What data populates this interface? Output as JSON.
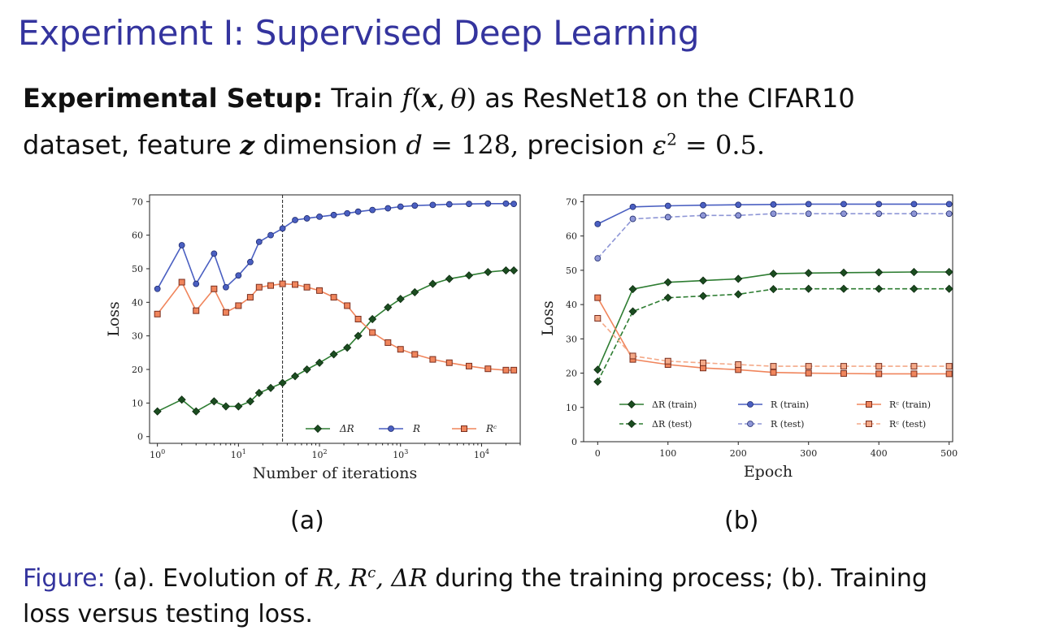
{
  "slide": {
    "title": "Experiment I: Supervised Deep Learning",
    "setup_label": "Experimental Setup:",
    "setup_train": "Train",
    "setup_f": "f",
    "setup_x": "x",
    "setup_theta": "θ",
    "setup_as": "as ResNet18 on the CIFAR10",
    "setup_line2a": "dataset, feature",
    "setup_z": "z",
    "setup_dim": "dimension",
    "setup_d": "d",
    "setup_d_val": "= 128,",
    "setup_precision": "precision",
    "setup_eps": "ε",
    "setup_eps_val": "= 0.5."
  },
  "subcaptions": {
    "a": "(a)",
    "b": "(b)"
  },
  "caption": {
    "label": "Figure:",
    "text_a": "(a). Evolution of",
    "text_math": "R, R",
    "text_mid": "during the training process; (b). Training",
    "text_line2": "loss versus testing loss."
  },
  "colors": {
    "delta_r": "#2e7d32",
    "delta_r_marker": "#1b4d20",
    "r": "#4a5fc1",
    "r_test": "#8e96d6",
    "rc": "#f0855c",
    "rc_test": "#f4a988",
    "rc_marker": "#7a2f1f"
  },
  "chart_data": [
    {
      "type": "line",
      "xlabel": "Number of iterations",
      "ylabel": "Loss",
      "xscale": "log",
      "xlim": [
        0.8,
        30000
      ],
      "ylim": [
        -2,
        72
      ],
      "xticks": [
        "10^0",
        "10^1",
        "10^2",
        "10^3",
        "10^4"
      ],
      "yticks": [
        0,
        10,
        20,
        30,
        40,
        50,
        60,
        70
      ],
      "vline_x": 35,
      "legend_position": "bottom-right",
      "series": [
        {
          "name": "ΔR",
          "key": "delta",
          "x": [
            1,
            2,
            3,
            5,
            7,
            10,
            14,
            18,
            25,
            35,
            50,
            70,
            100,
            150,
            220,
            300,
            450,
            700,
            1000,
            1500,
            2500,
            4000,
            7000,
            12000,
            20000,
            25000
          ],
          "y": [
            7.5,
            11,
            7.5,
            10.5,
            9,
            9,
            10.5,
            13,
            14.5,
            16,
            18,
            20,
            22,
            24.5,
            26.5,
            30,
            35,
            38.5,
            41,
            43,
            45.5,
            47,
            48,
            49,
            49.5,
            49.5
          ]
        },
        {
          "name": "R",
          "key": "r",
          "x": [
            1,
            2,
            3,
            5,
            7,
            10,
            14,
            18,
            25,
            35,
            50,
            70,
            100,
            150,
            220,
            300,
            450,
            700,
            1000,
            1500,
            2500,
            4000,
            7000,
            12000,
            20000,
            25000
          ],
          "y": [
            44,
            57,
            45.5,
            54.5,
            44.5,
            48,
            52,
            58,
            60,
            62,
            64.5,
            65,
            65.5,
            66,
            66.5,
            67,
            67.5,
            68,
            68.5,
            68.8,
            69,
            69.2,
            69.3,
            69.4,
            69.4,
            69.3
          ]
        },
        {
          "name": "R^c",
          "key": "rc",
          "x": [
            1,
            2,
            3,
            5,
            7,
            10,
            14,
            18,
            25,
            35,
            50,
            70,
            100,
            150,
            220,
            300,
            450,
            700,
            1000,
            1500,
            2500,
            4000,
            7000,
            12000,
            20000,
            25000
          ],
          "y": [
            36.5,
            46,
            37.5,
            44,
            37,
            39,
            41.5,
            44.5,
            45,
            45.5,
            45.3,
            44.5,
            43.5,
            41.5,
            39,
            35,
            31,
            28,
            26,
            24.5,
            23,
            22,
            21,
            20.2,
            19.8,
            19.8
          ]
        }
      ]
    },
    {
      "type": "line",
      "xlabel": "Epoch",
      "ylabel": "Loss",
      "xlim": [
        -20,
        505
      ],
      "ylim": [
        0,
        72
      ],
      "xticks": [
        0,
        100,
        200,
        300,
        400,
        500
      ],
      "yticks": [
        0,
        10,
        20,
        30,
        40,
        50,
        60,
        70
      ],
      "legend_position": "lower center",
      "series": [
        {
          "name": "ΔR (train)",
          "key": "delta",
          "dashed": false,
          "x": [
            0,
            50,
            100,
            150,
            200,
            250,
            300,
            350,
            400,
            450,
            500
          ],
          "y": [
            21,
            44.5,
            46.5,
            47,
            47.5,
            49,
            49.2,
            49.3,
            49.4,
            49.5,
            49.5
          ]
        },
        {
          "name": "ΔR (test)",
          "key": "delta",
          "dashed": true,
          "x": [
            0,
            50,
            100,
            150,
            200,
            250,
            300,
            350,
            400,
            450,
            500
          ],
          "y": [
            17.5,
            38,
            42,
            42.5,
            43,
            44.5,
            44.6,
            44.6,
            44.6,
            44.6,
            44.6
          ]
        },
        {
          "name": "R (train)",
          "key": "r",
          "dashed": false,
          "x": [
            0,
            50,
            100,
            150,
            200,
            250,
            300,
            350,
            400,
            450,
            500
          ],
          "y": [
            63.5,
            68.5,
            68.8,
            69,
            69.1,
            69.2,
            69.3,
            69.3,
            69.3,
            69.3,
            69.3
          ]
        },
        {
          "name": "R (test)",
          "key": "r_test",
          "dashed": true,
          "x": [
            0,
            50,
            100,
            150,
            200,
            250,
            300,
            350,
            400,
            450,
            500
          ],
          "y": [
            53.5,
            65,
            65.5,
            66,
            66,
            66.5,
            66.5,
            66.5,
            66.5,
            66.5,
            66.5
          ]
        },
        {
          "name": "R^c (train)",
          "key": "rc",
          "dashed": false,
          "x": [
            0,
            50,
            100,
            150,
            200,
            250,
            300,
            350,
            400,
            450,
            500
          ],
          "y": [
            42,
            24,
            22.5,
            21.5,
            21,
            20.2,
            20,
            19.9,
            19.8,
            19.8,
            19.8
          ]
        },
        {
          "name": "R^c (test)",
          "key": "rc_test",
          "dashed": true,
          "x": [
            0,
            50,
            100,
            150,
            200,
            250,
            300,
            350,
            400,
            450,
            500
          ],
          "y": [
            36,
            25,
            23.5,
            23,
            22.5,
            22,
            22,
            22,
            22,
            22,
            22
          ]
        }
      ]
    }
  ]
}
